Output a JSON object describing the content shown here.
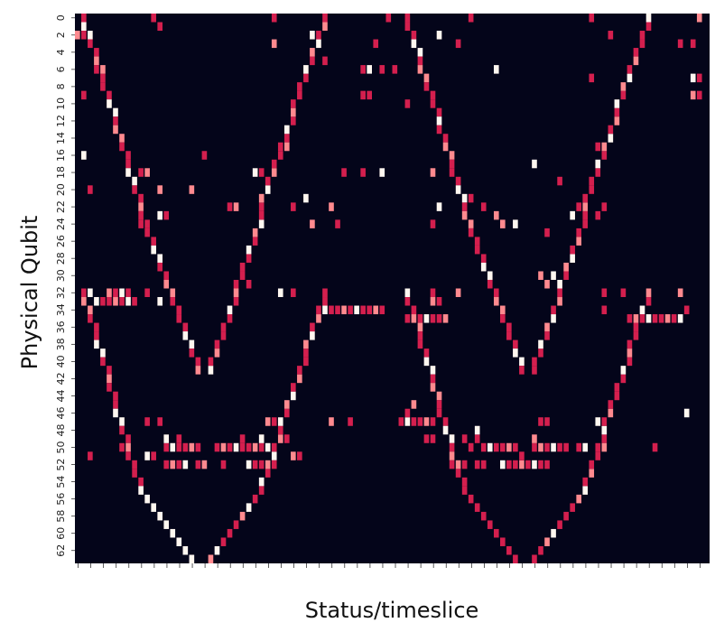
{
  "chart_data": {
    "type": "heatmap",
    "title": "",
    "xlabel": "Status/timeslice",
    "ylabel": "Physical Qubit",
    "rows": 64,
    "cols": 100,
    "y_tick_labels": [
      "0",
      "2",
      "4",
      "6",
      "8",
      "10",
      "12",
      "14",
      "16",
      "18",
      "20",
      "22",
      "24",
      "26",
      "28",
      "30",
      "32",
      "34",
      "36",
      "38",
      "40",
      "42",
      "44",
      "46",
      "48",
      "50",
      "52",
      "54",
      "56",
      "58",
      "60",
      "62"
    ],
    "x_tick_labels": "unlabeled ticks",
    "colorbar": false,
    "colors": {
      "background": "#04051a",
      "edge": "#d41f4e",
      "mid": "#ff8a8f",
      "center": "#fff7f0"
    },
    "segments": [
      {
        "from": [
          1,
          0
        ],
        "to": [
          10,
          22
        ],
        "repeats": [
          0,
          51
        ]
      },
      {
        "from": [
          10,
          23
        ],
        "to": [
          19,
          41
        ],
        "repeats": [
          0,
          51
        ]
      },
      {
        "from": [
          21,
          41
        ],
        "to": [
          29,
          23
        ],
        "repeats": [
          0,
          51
        ]
      },
      {
        "from": [
          29,
          22
        ],
        "to": [
          39,
          0
        ],
        "repeats": [
          0,
          51
        ]
      },
      {
        "from": [
          1,
          32
        ],
        "to": [
          10,
          55
        ],
        "repeats": [
          0,
          51
        ]
      },
      {
        "from": [
          10,
          55
        ],
        "to": [
          19,
          64
        ],
        "repeats": [
          0,
          51
        ]
      },
      {
        "from": [
          20,
          64
        ],
        "to": [
          29,
          55
        ],
        "repeats": [
          0,
          51
        ]
      },
      {
        "from": [
          29,
          55
        ],
        "to": [
          39,
          32
        ],
        "repeats": [
          0,
          51
        ]
      }
    ],
    "bars": [
      {
        "row": 33,
        "from": 3,
        "to": 9
      },
      {
        "row": 32,
        "from": 5,
        "to": 8
      },
      {
        "row": 34,
        "from": 38,
        "to": 48
      },
      {
        "row": 50,
        "from": 14,
        "to": 19
      },
      {
        "row": 52,
        "from": 14,
        "to": 17
      },
      {
        "row": 50,
        "from": 22,
        "to": 31
      },
      {
        "row": 35,
        "from": 52,
        "to": 57
      },
      {
        "row": 47,
        "from": 51,
        "to": 56
      },
      {
        "row": 50,
        "from": 64,
        "to": 69
      },
      {
        "row": 52,
        "from": 67,
        "to": 74
      },
      {
        "row": 35,
        "from": 87,
        "to": 94
      },
      {
        "row": 50,
        "from": 72,
        "to": 77
      }
    ],
    "points": [
      [
        12,
        0
      ],
      [
        13,
        1
      ],
      [
        31,
        0
      ],
      [
        49,
        0
      ],
      [
        62,
        0
      ],
      [
        81,
        0
      ],
      [
        98,
        0
      ],
      [
        0,
        2
      ],
      [
        1,
        2
      ],
      [
        2,
        2
      ],
      [
        31,
        3
      ],
      [
        37,
        2
      ],
      [
        47,
        3
      ],
      [
        57,
        2
      ],
      [
        60,
        3
      ],
      [
        84,
        2
      ],
      [
        95,
        3
      ],
      [
        97,
        3
      ],
      [
        3,
        4
      ],
      [
        39,
        5
      ],
      [
        45,
        6
      ],
      [
        46,
        6
      ],
      [
        48,
        6
      ],
      [
        50,
        6
      ],
      [
        54,
        4
      ],
      [
        97,
        7
      ],
      [
        98,
        7
      ],
      [
        4,
        6
      ],
      [
        66,
        6
      ],
      [
        81,
        7
      ],
      [
        1,
        9
      ],
      [
        45,
        9
      ],
      [
        46,
        9
      ],
      [
        52,
        10
      ],
      [
        97,
        9
      ],
      [
        98,
        9
      ],
      [
        33,
        15
      ],
      [
        82,
        15
      ],
      [
        20,
        16
      ],
      [
        1,
        16
      ],
      [
        10,
        18
      ],
      [
        11,
        18
      ],
      [
        28,
        18
      ],
      [
        29,
        18
      ],
      [
        13,
        20
      ],
      [
        42,
        18
      ],
      [
        45,
        18
      ],
      [
        48,
        18
      ],
      [
        56,
        18
      ],
      [
        72,
        17
      ],
      [
        76,
        19
      ],
      [
        81,
        19
      ],
      [
        10,
        21
      ],
      [
        36,
        21
      ],
      [
        62,
        21
      ],
      [
        2,
        20
      ],
      [
        18,
        20
      ],
      [
        24,
        22
      ],
      [
        25,
        22
      ],
      [
        34,
        22
      ],
      [
        40,
        22
      ],
      [
        57,
        22
      ],
      [
        64,
        22
      ],
      [
        66,
        23
      ],
      [
        69,
        24
      ],
      [
        74,
        25
      ],
      [
        79,
        22
      ],
      [
        78,
        23
      ],
      [
        82,
        23
      ],
      [
        83,
        22
      ],
      [
        13,
        23
      ],
      [
        14,
        23
      ],
      [
        10,
        24
      ],
      [
        34,
        22
      ],
      [
        37,
        24
      ],
      [
        41,
        24
      ],
      [
        56,
        24
      ],
      [
        67,
        24
      ],
      [
        2,
        32
      ],
      [
        11,
        32
      ],
      [
        32,
        32
      ],
      [
        34,
        32
      ],
      [
        56,
        32
      ],
      [
        57,
        33
      ],
      [
        60,
        32
      ],
      [
        83,
        32
      ],
      [
        86,
        32
      ],
      [
        95,
        32
      ],
      [
        1,
        33
      ],
      [
        13,
        33
      ],
      [
        96,
        34
      ],
      [
        83,
        34
      ],
      [
        58,
        35
      ],
      [
        95,
        35
      ],
      [
        56,
        33
      ],
      [
        11,
        47
      ],
      [
        13,
        47
      ],
      [
        30,
        47
      ],
      [
        31,
        47
      ],
      [
        40,
        47
      ],
      [
        43,
        47
      ],
      [
        73,
        47
      ],
      [
        74,
        47
      ],
      [
        82,
        47
      ],
      [
        53,
        45
      ],
      [
        52,
        46
      ],
      [
        96,
        46
      ],
      [
        55,
        49
      ],
      [
        56,
        49
      ],
      [
        59,
        49
      ],
      [
        63,
        49
      ],
      [
        63,
        48
      ],
      [
        72,
        49
      ],
      [
        14,
        49
      ],
      [
        16,
        49
      ],
      [
        26,
        49
      ],
      [
        29,
        49
      ],
      [
        33,
        49
      ],
      [
        61,
        49
      ],
      [
        62,
        50
      ],
      [
        7,
        50
      ],
      [
        2,
        51
      ],
      [
        11,
        51
      ],
      [
        12,
        51
      ],
      [
        15,
        52
      ],
      [
        20,
        52
      ],
      [
        34,
        51
      ],
      [
        35,
        51
      ],
      [
        75,
        50
      ],
      [
        76,
        50
      ],
      [
        77,
        50
      ],
      [
        79,
        50
      ],
      [
        80,
        50
      ],
      [
        82,
        50
      ],
      [
        83,
        50
      ],
      [
        91,
        50
      ],
      [
        19,
        52
      ],
      [
        23,
        52
      ],
      [
        27,
        52
      ],
      [
        28,
        52
      ],
      [
        29,
        52
      ],
      [
        30,
        52
      ],
      [
        31,
        52
      ],
      [
        59,
        52
      ],
      [
        60,
        52
      ],
      [
        61,
        52
      ],
      [
        63,
        52
      ],
      [
        64,
        52
      ],
      [
        70,
        51
      ],
      [
        26,
        30
      ],
      [
        27,
        31
      ],
      [
        73,
        30
      ],
      [
        74,
        31
      ],
      [
        75,
        30
      ]
    ]
  }
}
